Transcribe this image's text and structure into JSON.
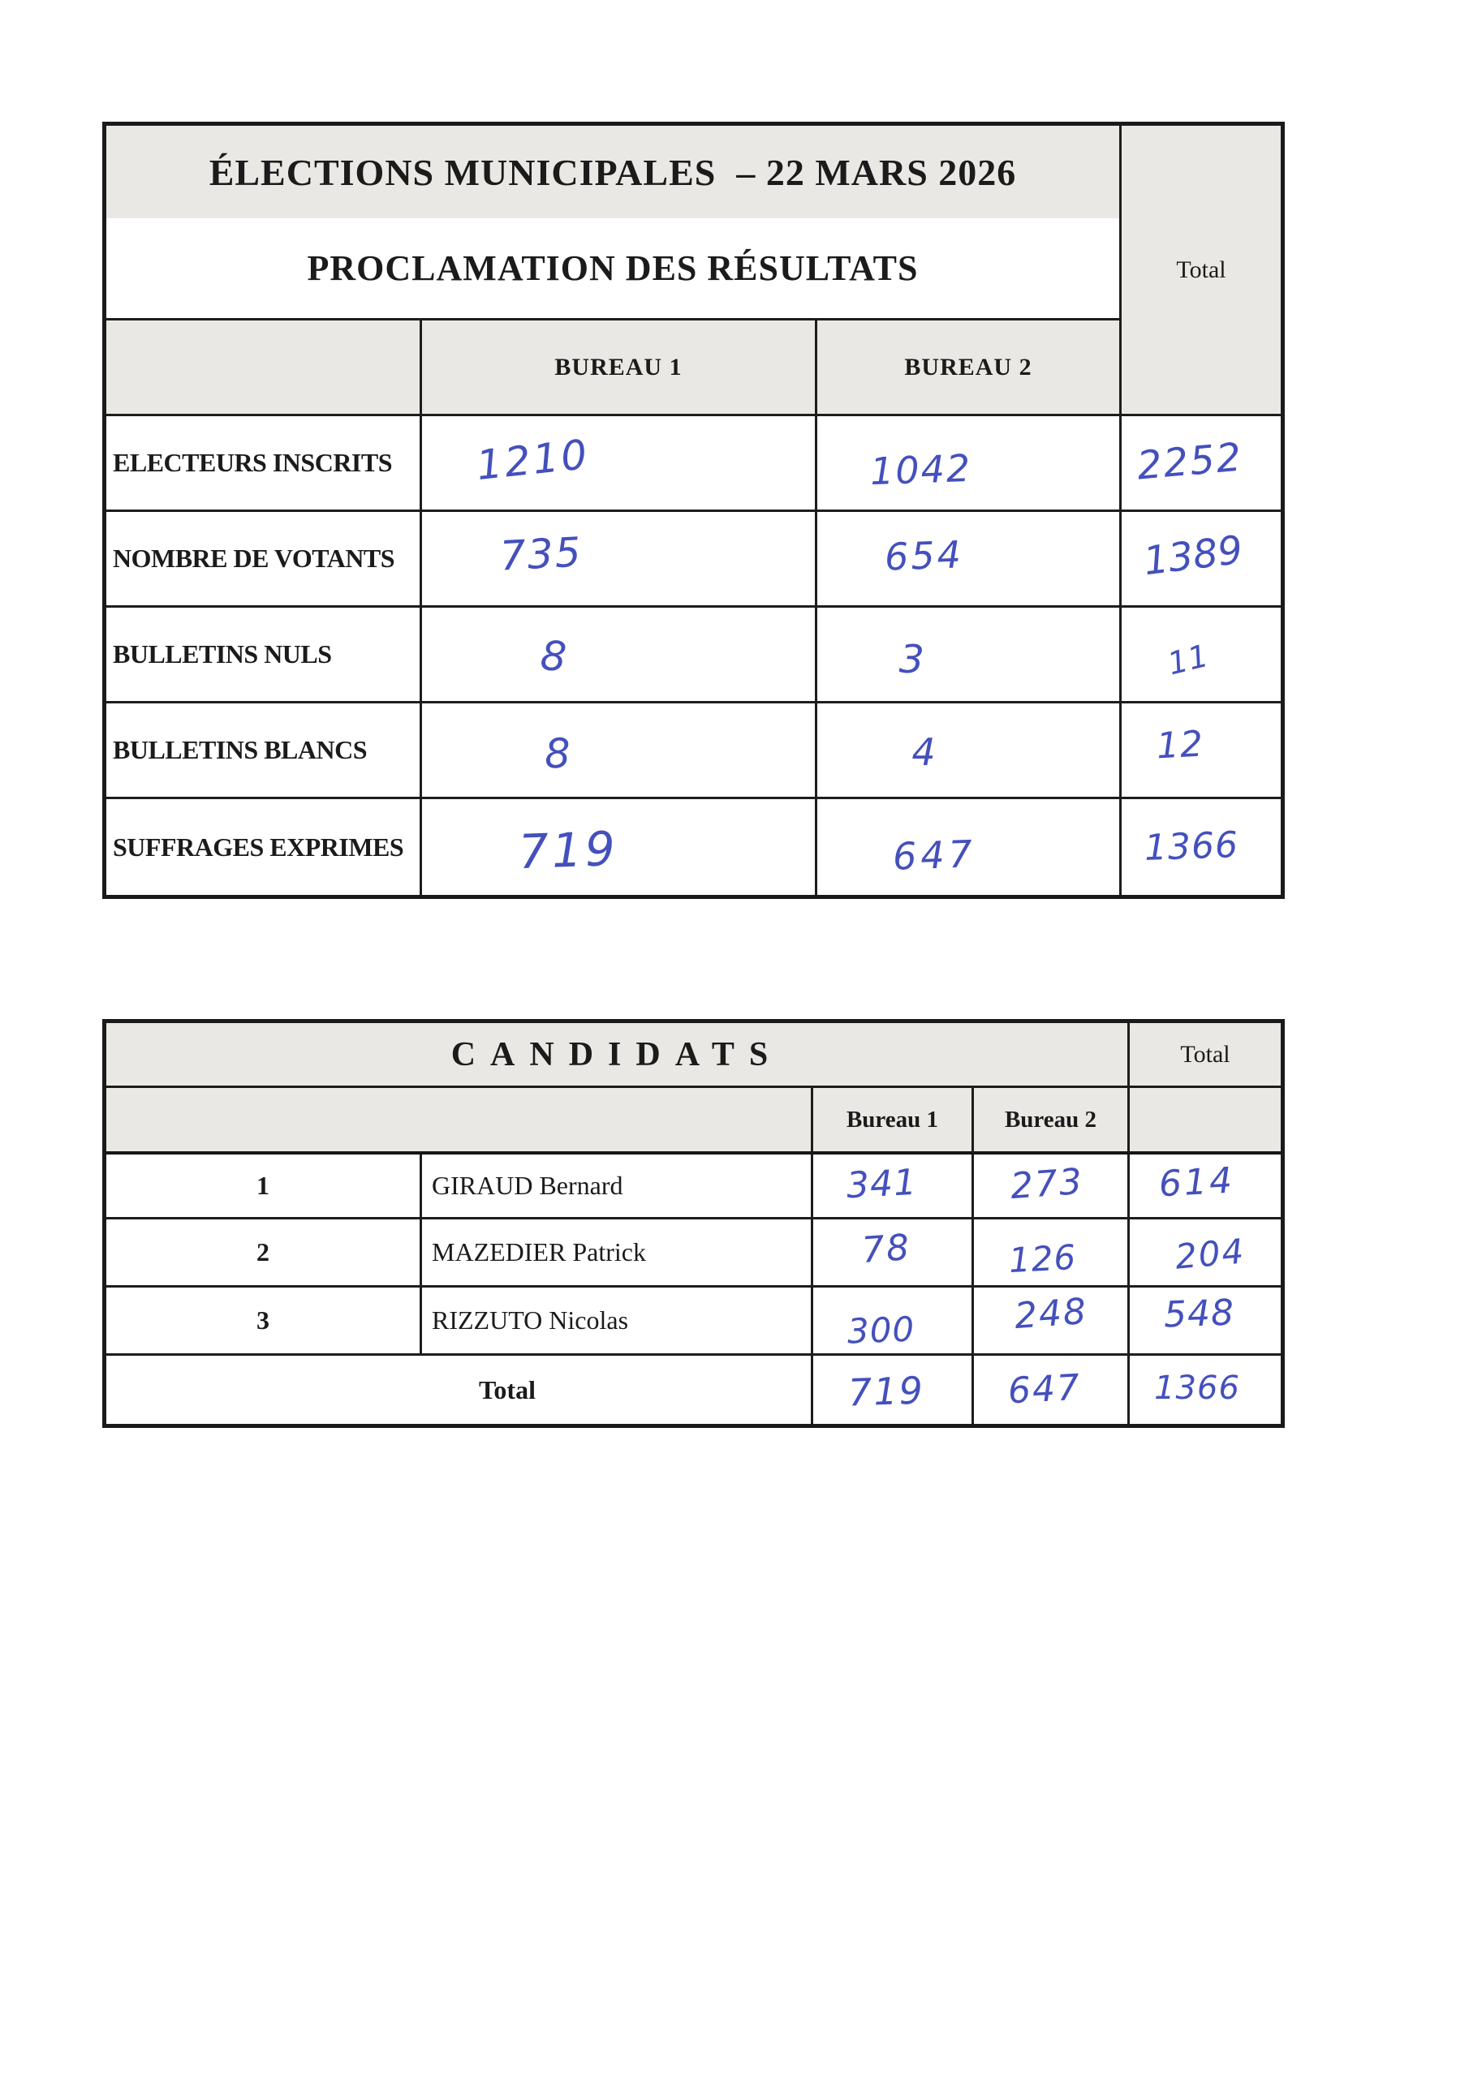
{
  "page": {
    "ink_color": "#4450bc",
    "header_fill": "#e9e8e5",
    "paper_color": "#ffffff"
  },
  "results_table": {
    "title_line1": "ÉLECTIONS MUNICIPALES  – 22 MARS 2026",
    "title_line2": "PROCLAMATION DES RÉSULTATS",
    "total_header": "Total",
    "col_headers": [
      "BUREAU 1",
      "BUREAU 2"
    ],
    "rows": [
      {
        "label": "ELECTEURS INSCRITS",
        "bureau1": "1210",
        "bureau2": "1042",
        "total": "2252"
      },
      {
        "label": "NOMBRE DE VOTANTS",
        "bureau1": "735",
        "bureau2": "654",
        "total": "1389"
      },
      {
        "label": "BULLETINS NULS",
        "bureau1": "8",
        "bureau2": "3",
        "total": "11"
      },
      {
        "label": "BULLETINS BLANCS",
        "bureau1": "8",
        "bureau2": "4",
        "total": "12"
      },
      {
        "label": "SUFFRAGES EXPRIMES",
        "bureau1": "719",
        "bureau2": "647",
        "total": "1366"
      }
    ]
  },
  "candidates_table": {
    "title": "CANDIDATS",
    "total_header": "Total",
    "col_headers": [
      "Bureau 1",
      "Bureau 2"
    ],
    "candidates": [
      {
        "number": "1",
        "name": "GIRAUD Bernard",
        "bureau1": "341",
        "bureau2": "273",
        "total": "614"
      },
      {
        "number": "2",
        "name": "MAZEDIER Patrick",
        "bureau1": "78",
        "bureau2": "126",
        "total": "204"
      },
      {
        "number": "3",
        "name": "RIZZUTO Nicolas",
        "bureau1": "300",
        "bureau2": "248",
        "total": "548"
      }
    ],
    "totals": {
      "label": "Total",
      "bureau1": "719",
      "bureau2": "647",
      "total": "1366"
    }
  }
}
